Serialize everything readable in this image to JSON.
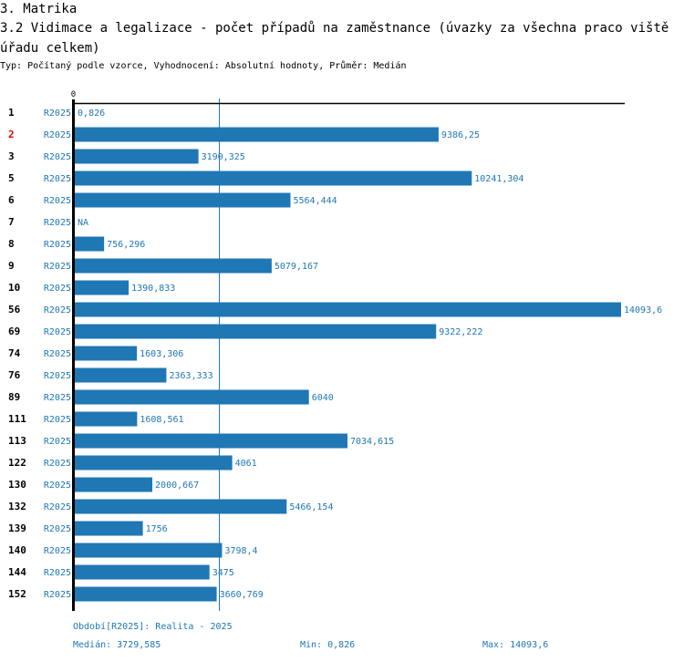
{
  "header": {
    "section": "3. Matrika",
    "title": "3.2 Vidimace a legalizace - počet případů na zaměstnance (úvazky za všechna praco viště úřadu celkem)",
    "subtitle": "Typ: Počítaný podle vzorce, Vyhodnocení: Absolutní hodnoty, Průměr: Medián"
  },
  "colors": {
    "bar": "#1f77b4",
    "highlight_label": "#e00000",
    "axis": "#000000"
  },
  "chart_data": {
    "type": "bar",
    "orientation": "horizontal",
    "title": "3.2 Vidimace a legalizace - počet případů na zaměstnance (úvazky za všechna pracoviště úřadu celkem)",
    "xlabel": "",
    "ylabel": "",
    "x_tick_labels": [
      "0"
    ],
    "xlim": [
      0,
      14093.6
    ],
    "series_name": "R2025",
    "highlighted_category": "2",
    "reference_line": {
      "label": "Medián",
      "value": 3729.585
    },
    "categories": [
      "1",
      "2",
      "3",
      "5",
      "6",
      "7",
      "8",
      "9",
      "10",
      "56",
      "69",
      "74",
      "76",
      "89",
      "111",
      "113",
      "122",
      "130",
      "132",
      "139",
      "140",
      "144",
      "152"
    ],
    "values": [
      0.826,
      9386.25,
      3190.325,
      10241.304,
      5564.444,
      null,
      756.296,
      5079.167,
      1390.833,
      14093.6,
      9322.222,
      1603.306,
      2363.333,
      6040,
      1608.561,
      7034.615,
      4061,
      2000.667,
      5466.154,
      1756,
      3798.4,
      3475,
      3660.769
    ],
    "value_labels": [
      "0,826",
      "9386,25",
      "3190,325",
      "10241,304",
      "5564,444",
      "NA",
      "756,296",
      "5079,167",
      "1390,833",
      "14093,6",
      "9322,222",
      "1603,306",
      "2363,333",
      "6040",
      "1608,561",
      "7034,615",
      "4061",
      "2000,667",
      "5466,154",
      "1756",
      "3798,4",
      "3475",
      "3660,769"
    ],
    "series_labels": [
      "R2025",
      "R2025",
      "R2025",
      "R2025",
      "R2025",
      "R2025",
      "R2025",
      "R2025",
      "R2025",
      "R2025",
      "R2025",
      "R2025",
      "R2025",
      "R2025",
      "R2025",
      "R2025",
      "R2025",
      "R2025",
      "R2025",
      "R2025",
      "R2025",
      "R2025",
      "R2025"
    ]
  },
  "footer": {
    "period": "Období[R2025]: Realita - 2025",
    "median": "Medián: 3729,585",
    "min": "Min: 0,826",
    "max": "Max: 14093,6"
  }
}
